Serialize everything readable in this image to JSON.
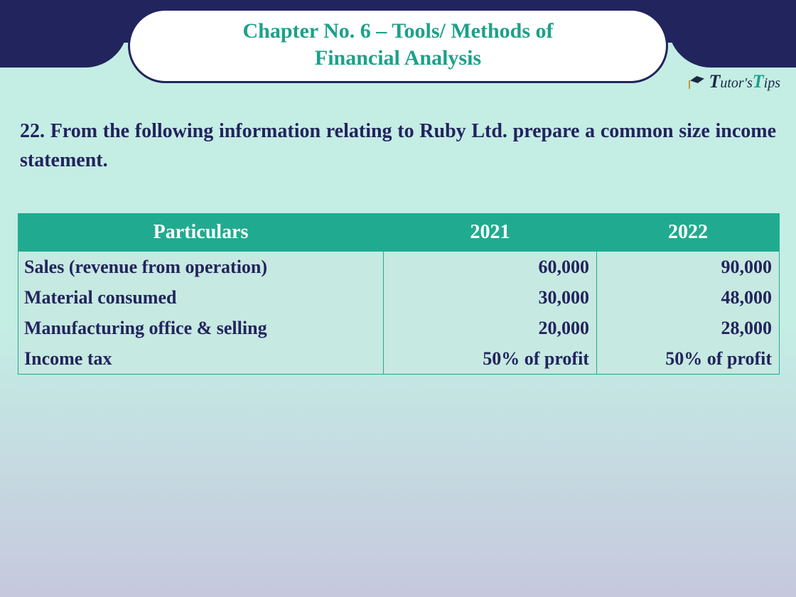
{
  "header": {
    "title_line1": "Chapter No. 6 – Tools/ Methods of",
    "title_line2": "Financial Analysis",
    "title_color": "#1ca189",
    "band_color": "#22245e",
    "pill_bg": "#ffffff"
  },
  "logo": {
    "text_part1": "T",
    "text_part2": "utor's",
    "text_part3": "T",
    "text_part4": "ips"
  },
  "question": {
    "text": "22. From the following information relating to Ruby Ltd. prepare a common size income statement.",
    "color": "#22245e",
    "fontsize": 28
  },
  "table": {
    "header_bg": "#20ab90",
    "header_color": "#ffffff",
    "body_bg": "#c6e9e1",
    "text_color": "#22245e",
    "border_color": "#20ab90",
    "columns": [
      "Particulars",
      "2021",
      "2022"
    ],
    "rows": [
      {
        "particulars": "Sales (revenue from operation)",
        "y2021": "60,000",
        "y2022": "90,000"
      },
      {
        "particulars": "Material consumed",
        "y2021": "30,000",
        "y2022": "48,000"
      },
      {
        "particulars": "Manufacturing office & selling",
        "y2021": "20,000",
        "y2022": "28,000"
      },
      {
        "particulars": "Income tax",
        "y2021": "50% of profit",
        "y2022": "50% of profit"
      }
    ]
  },
  "background": {
    "gradient_top": "#c4ede4",
    "gradient_bottom": "#c6c8de"
  }
}
